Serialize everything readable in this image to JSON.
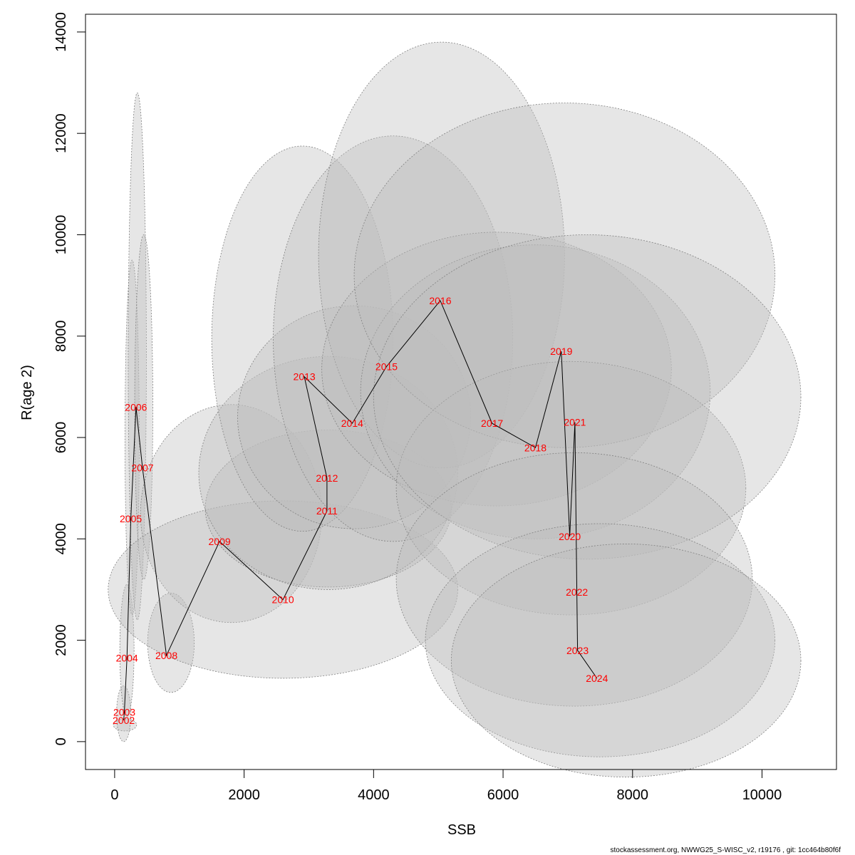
{
  "chart_data": {
    "type": "line",
    "xlabel": "SSB",
    "ylabel": "R(age 2)",
    "xlim": [
      -450,
      11150
    ],
    "ylim": [
      -550,
      14350
    ],
    "x_ticks": [
      0,
      2000,
      4000,
      6000,
      8000,
      10000
    ],
    "y_ticks": [
      0,
      2000,
      4000,
      6000,
      8000,
      10000,
      12000,
      14000
    ],
    "x_tick_labels": [
      "0",
      "2000",
      "4000",
      "6000",
      "8000",
      "10000"
    ],
    "y_tick_labels": [
      "0",
      "2000",
      "4000",
      "6000",
      "8000",
      "10000",
      "12000",
      "14000"
    ],
    "colors": {
      "trajectory": "#000000",
      "year_label": "#ff0000",
      "ellipse_fill": "#bebebe",
      "ellipse_stroke": "#808080"
    },
    "points": [
      {
        "year": "2002",
        "x": 140,
        "y": 420
      },
      {
        "year": "2003",
        "x": 150,
        "y": 580
      },
      {
        "year": "2004",
        "x": 190,
        "y": 1650
      },
      {
        "year": "2005",
        "x": 250,
        "y": 4400
      },
      {
        "year": "2006",
        "x": 330,
        "y": 6600
      },
      {
        "year": "2007",
        "x": 430,
        "y": 5400
      },
      {
        "year": "2008",
        "x": 800,
        "y": 1700
      },
      {
        "year": "2009",
        "x": 1620,
        "y": 3950
      },
      {
        "year": "2010",
        "x": 2600,
        "y": 2800
      },
      {
        "year": "2011",
        "x": 3280,
        "y": 4550
      },
      {
        "year": "2012",
        "x": 3280,
        "y": 5200
      },
      {
        "year": "2013",
        "x": 2930,
        "y": 7200
      },
      {
        "year": "2014",
        "x": 3670,
        "y": 6280
      },
      {
        "year": "2015",
        "x": 4200,
        "y": 7400
      },
      {
        "year": "2016",
        "x": 5030,
        "y": 8700
      },
      {
        "year": "2017",
        "x": 5830,
        "y": 6280
      },
      {
        "year": "2018",
        "x": 6500,
        "y": 5800
      },
      {
        "year": "2019",
        "x": 6900,
        "y": 7700
      },
      {
        "year": "2020",
        "x": 7030,
        "y": 4050
      },
      {
        "year": "2021",
        "x": 7110,
        "y": 6300
      },
      {
        "year": "2022",
        "x": 7140,
        "y": 2950
      },
      {
        "year": "2023",
        "x": 7150,
        "y": 1800
      },
      {
        "year": "2024",
        "x": 7450,
        "y": 1250
      }
    ],
    "confidence_regions": [
      {
        "year": "2002",
        "cx": 160,
        "cy": 330,
        "rx": 180,
        "ry": 120
      },
      {
        "year": "2003",
        "cx": 140,
        "cy": 550,
        "rx": 110,
        "ry": 550
      },
      {
        "year": "2004",
        "cx": 190,
        "cy": 1800,
        "rx": 110,
        "ry": 1300
      },
      {
        "year": "2005",
        "cx": 270,
        "cy": 6000,
        "rx": 110,
        "ry": 3500
      },
      {
        "year": "2006",
        "cx": 350,
        "cy": 7600,
        "rx": 140,
        "ry": 5200
      },
      {
        "year": "2007",
        "cx": 450,
        "cy": 6600,
        "rx": 140,
        "ry": 3400
      },
      {
        "year": "2008",
        "cx": 870,
        "cy": 1950,
        "rx": 360,
        "ry": 980
      },
      {
        "year": "2009",
        "cx": 1800,
        "cy": 4500,
        "rx": 1400,
        "ry": 2150
      },
      {
        "year": "2010",
        "cx": 2600,
        "cy": 3000,
        "rx": 2700,
        "ry": 1750
      },
      {
        "year": "2011",
        "cx": 3300,
        "cy": 4600,
        "rx": 1900,
        "ry": 1550
      },
      {
        "year": "2012",
        "cx": 3300,
        "cy": 5300,
        "rx": 2000,
        "ry": 2300
      },
      {
        "year": "2013",
        "cx": 2900,
        "cy": 7950,
        "rx": 1400,
        "ry": 3800
      },
      {
        "year": "2014",
        "cx": 3700,
        "cy": 6400,
        "rx": 1800,
        "ry": 2200
      },
      {
        "year": "2015",
        "cx": 4300,
        "cy": 7950,
        "rx": 1850,
        "ry": 4000
      },
      {
        "year": "2016",
        "cx": 5050,
        "cy": 9600,
        "rx": 1900,
        "ry": 4200
      },
      {
        "year": "2017",
        "cx": 5900,
        "cy": 7350,
        "rx": 2700,
        "ry": 2700
      },
      {
        "year": "2018",
        "cx": 6500,
        "cy": 6900,
        "rx": 2700,
        "ry": 2900
      },
      {
        "year": "2019",
        "cx": 6950,
        "cy": 9200,
        "rx": 3250,
        "ry": 3400
      },
      {
        "year": "2020",
        "cx": 7050,
        "cy": 5000,
        "rx": 2700,
        "ry": 2500
      },
      {
        "year": "2021",
        "cx": 7300,
        "cy": 6800,
        "rx": 3300,
        "ry": 3200
      },
      {
        "year": "2022",
        "cx": 7100,
        "cy": 3200,
        "rx": 2750,
        "ry": 2500
      },
      {
        "year": "2023",
        "cx": 7500,
        "cy": 2000,
        "rx": 2700,
        "ry": 2300
      },
      {
        "year": "2024",
        "cx": 7900,
        "cy": 1600,
        "rx": 2700,
        "ry": 2300
      }
    ]
  },
  "footer": {
    "text": "stockassessment.org, NWWG25_S-WISC_v2, r19176 , git: 1cc464b80f6f"
  }
}
